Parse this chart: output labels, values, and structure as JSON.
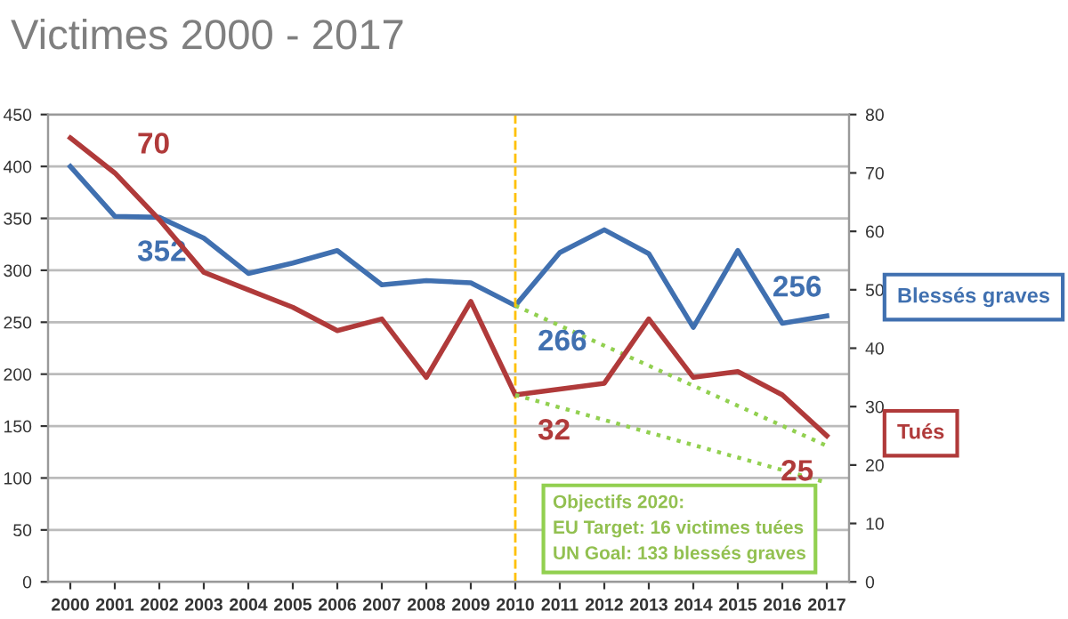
{
  "chart_data": {
    "type": "line",
    "title": "Victimes 2000 - 2017",
    "x": [
      2000,
      2001,
      2002,
      2003,
      2004,
      2005,
      2006,
      2007,
      2008,
      2009,
      2010,
      2011,
      2012,
      2013,
      2014,
      2015,
      2016,
      2017
    ],
    "xlim": [
      1999.5,
      2017.5
    ],
    "xticks": [
      2000,
      2001,
      2002,
      2003,
      2004,
      2005,
      2006,
      2007,
      2008,
      2009,
      2010,
      2011,
      2012,
      2013,
      2014,
      2015,
      2016,
      2017
    ],
    "ylim": [
      0,
      450
    ],
    "yticks": [
      0,
      50,
      100,
      150,
      200,
      250,
      300,
      350,
      400,
      450
    ],
    "y2lim": [
      0,
      80
    ],
    "y2ticks": [
      0,
      10,
      20,
      30,
      40,
      50,
      60,
      70,
      80
    ],
    "series": [
      {
        "name": "Blessés graves",
        "color": "#4070b0",
        "values": [
          400,
          352,
          351,
          331,
          297,
          307,
          319,
          286,
          290,
          288,
          266,
          317,
          339,
          316,
          245,
          319,
          249,
          256
        ],
        "value_labels": [
          null,
          "352",
          null,
          null,
          null,
          null,
          null,
          null,
          null,
          null,
          "266",
          null,
          null,
          null,
          null,
          null,
          null,
          "256"
        ]
      },
      {
        "name": "Tués",
        "color": "#b03a3a",
        "axis": "y2",
        "values": [
          76,
          70,
          62,
          53,
          50,
          47,
          43,
          45,
          35,
          48,
          32,
          33,
          34,
          45,
          35,
          36,
          32,
          25
        ],
        "value_labels": [
          null,
          "70",
          null,
          null,
          null,
          null,
          null,
          null,
          null,
          null,
          "32",
          null,
          null,
          null,
          null,
          null,
          null,
          "25"
        ]
      },
      {
        "color": "#92d050",
        "values": [
          null,
          null,
          null,
          null,
          null,
          null,
          null,
          null,
          null,
          null,
          266,
          null,
          null,
          null,
          null,
          null,
          null,
          131
        ],
        "line_style": "dotted"
      },
      {
        "color": "#92d050",
        "axis": "y2",
        "values": [
          null,
          null,
          null,
          null,
          null,
          null,
          null,
          null,
          null,
          null,
          32,
          null,
          null,
          null,
          null,
          null,
          null,
          17
        ],
        "line_style": "dotted"
      }
    ],
    "ref_lines": [
      {
        "axis": "x",
        "value": 2010,
        "color": "#ffc000",
        "line_style": "dashed"
      }
    ],
    "annotations": [
      "Objectifs 2020:\nEU Target: 16 victimes tuées\nUN Goal: 133 blessés graves"
    ],
    "grid": "y",
    "legend": "right",
    "marker": "none"
  }
}
